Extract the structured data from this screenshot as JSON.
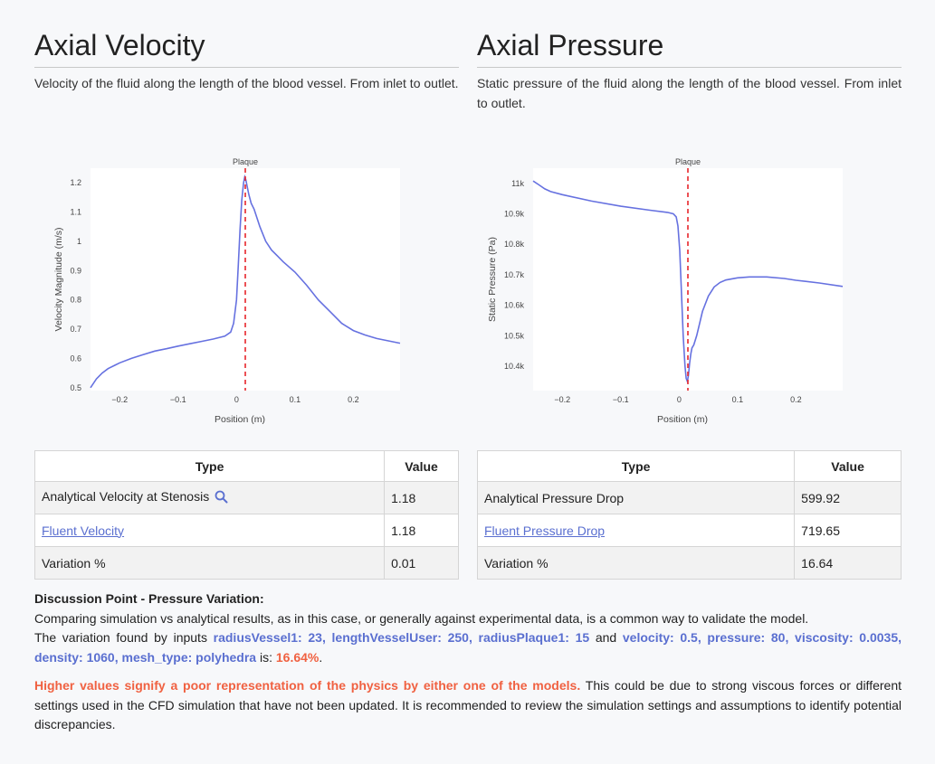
{
  "velocity": {
    "title": "Axial Velocity",
    "description": "Velocity of the fluid along the length of the blood vessel. From inlet to outlet."
  },
  "pressure": {
    "title": "Axial Pressure",
    "description": "Static pressure of the fluid along the length of the blood vessel. From inlet to outlet."
  },
  "chart_data": [
    {
      "type": "line",
      "title": "",
      "xlabel": "Position (m)",
      "ylabel": "Velocity Magnitude (m/s)",
      "xlim": [
        -0.25,
        0.28
      ],
      "ylim": [
        0.49,
        1.25
      ],
      "x_ticks": [
        -0.2,
        -0.1,
        0,
        0.1,
        0.2
      ],
      "x_tick_labels": [
        "−0.2",
        "−0.1",
        "0",
        "0.1",
        "0.2"
      ],
      "y_ticks": [
        0.5,
        0.6,
        0.7,
        0.8,
        0.9,
        1,
        1.1,
        1.2
      ],
      "y_tick_labels": [
        "0.5",
        "0.6",
        "0.7",
        "0.8",
        "0.9",
        "1",
        "1.1",
        "1.2"
      ],
      "annotation": {
        "x": 0.015,
        "label": "Plaque"
      },
      "color": "#6671e0",
      "series": [
        {
          "x": [
            -0.25,
            -0.24,
            -0.23,
            -0.22,
            -0.2,
            -0.18,
            -0.16,
            -0.14,
            -0.12,
            -0.1,
            -0.08,
            -0.06,
            -0.04,
            -0.02,
            -0.01,
            -0.005,
            0,
            0.003,
            0.006,
            0.009,
            0.012,
            0.014,
            0.016,
            0.018,
            0.021,
            0.025,
            0.03,
            0.035,
            0.04,
            0.05,
            0.06,
            0.07,
            0.08,
            0.1,
            0.12,
            0.14,
            0.16,
            0.18,
            0.2,
            0.22,
            0.24,
            0.26,
            0.28
          ],
          "y": [
            0.5,
            0.53,
            0.55,
            0.565,
            0.585,
            0.6,
            0.613,
            0.625,
            0.633,
            0.642,
            0.65,
            0.658,
            0.666,
            0.676,
            0.69,
            0.72,
            0.8,
            0.92,
            1.04,
            1.14,
            1.2,
            1.22,
            1.21,
            1.19,
            1.16,
            1.13,
            1.11,
            1.08,
            1.05,
            1.0,
            0.97,
            0.95,
            0.93,
            0.895,
            0.85,
            0.8,
            0.76,
            0.72,
            0.695,
            0.68,
            0.668,
            0.66,
            0.652
          ]
        }
      ]
    },
    {
      "type": "line",
      "title": "",
      "xlabel": "Position (m)",
      "ylabel": "Static Pressure (Pa)",
      "xlim": [
        -0.25,
        0.28
      ],
      "ylim": [
        10320,
        11050
      ],
      "x_ticks": [
        -0.2,
        -0.1,
        0,
        0.1,
        0.2
      ],
      "x_tick_labels": [
        "−0.2",
        "−0.1",
        "0",
        "0.1",
        "0.2"
      ],
      "y_ticks": [
        10400,
        10500,
        10600,
        10700,
        10800,
        10900,
        11000
      ],
      "y_tick_labels": [
        "10.4k",
        "10.5k",
        "10.6k",
        "10.7k",
        "10.8k",
        "10.9k",
        "11k"
      ],
      "annotation": {
        "x": 0.015,
        "label": "Plaque"
      },
      "color": "#6671e0",
      "series": [
        {
          "x": [
            -0.25,
            -0.24,
            -0.23,
            -0.22,
            -0.2,
            -0.15,
            -0.1,
            -0.05,
            -0.02,
            -0.01,
            -0.005,
            -0.002,
            0.001,
            0.004,
            0.007,
            0.01,
            0.012,
            0.014,
            0.016,
            0.018,
            0.02,
            0.022,
            0.025,
            0.03,
            0.035,
            0.04,
            0.05,
            0.06,
            0.07,
            0.08,
            0.1,
            0.12,
            0.15,
            0.18,
            0.2,
            0.24,
            0.28
          ],
          "y": [
            11008,
            10995,
            10982,
            10973,
            10963,
            10942,
            10925,
            10912,
            10905,
            10900,
            10890,
            10860,
            10780,
            10640,
            10500,
            10400,
            10360,
            10350,
            10370,
            10410,
            10440,
            10460,
            10470,
            10500,
            10540,
            10580,
            10630,
            10660,
            10675,
            10683,
            10690,
            10693,
            10693,
            10688,
            10682,
            10673,
            10662
          ]
        }
      ]
    }
  ],
  "velocity_table": {
    "headers": [
      "Type",
      "Value"
    ],
    "rows": [
      {
        "type": "Analytical Velocity at Stenosis",
        "value": "1.18"
      },
      {
        "type": "Fluent Velocity",
        "value": "1.18"
      },
      {
        "type": "Variation %",
        "value": "0.01"
      }
    ]
  },
  "pressure_table": {
    "headers": [
      "Type",
      "Value"
    ],
    "rows": [
      {
        "type": "Analytical Pressure Drop",
        "value": "599.92"
      },
      {
        "type": "Fluent Pressure Drop",
        "value": "719.65"
      },
      {
        "type": "Variation %",
        "value": "16.64"
      }
    ]
  },
  "discussion": {
    "heading": "Discussion Point - Pressure Variation:",
    "line1": "Comparing simulation vs analytical results, as in this case, or generally against experimental data, is a common way to validate the model.",
    "line2_prefix": "The variation found by inputs ",
    "inputs_geometry": "radiusVessel1: 23, lengthVesselUser: 250, radiusPlaque1: 15",
    "and_text": " and ",
    "inputs_physics": "velocity: 0.5, pressure: 80, viscosity: 0.0035, density: 1060, mesh_type: polyhedra",
    "is_text": " is: ",
    "variation_value": "16.64%",
    "period": ".",
    "warning_bold": "Higher values signify a poor representation of the physics by either one of the models.",
    "warning_rest": " This could be due to strong viscous forces or different settings used in the CFD simulation that have not been updated. It is recommended to review the simulation settings and assumptions to identify potential discrepancies."
  }
}
